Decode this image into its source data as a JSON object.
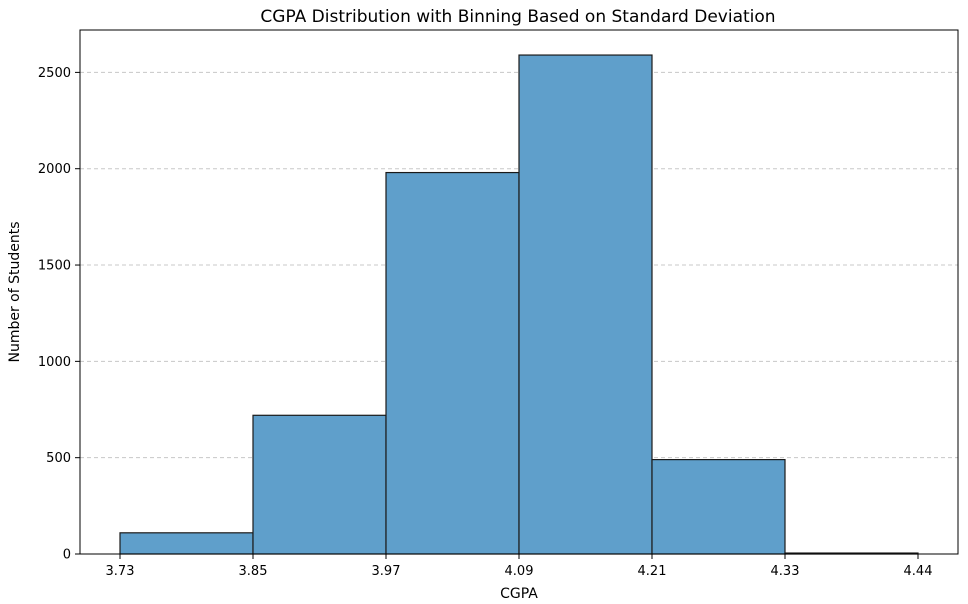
{
  "chart_data": {
    "type": "histogram",
    "title": "CGPA Distribution with Binning Based on Standard Deviation",
    "xlabel": "CGPA",
    "ylabel": "Number of Students",
    "bin_edges": [
      3.73,
      3.85,
      3.97,
      4.09,
      4.21,
      4.33,
      4.44
    ],
    "x_tick_labels": [
      "3.73",
      "3.85",
      "3.97",
      "4.09",
      "4.21",
      "4.33",
      "4.44"
    ],
    "values": [
      110,
      720,
      1980,
      2590,
      490,
      5
    ],
    "y_ticks": [
      0,
      500,
      1000,
      1500,
      2000,
      2500
    ],
    "y_tick_labels": [
      "0",
      "500",
      "1000",
      "1500",
      "2000",
      "2500"
    ],
    "ylim": [
      0,
      2720
    ],
    "grid": "y-axis dashed",
    "colors": {
      "bar_fill": "#5f9fcb",
      "bar_edge": "#1a1a1a",
      "grid": "#c8c8c8",
      "axis": "#000000"
    }
  }
}
